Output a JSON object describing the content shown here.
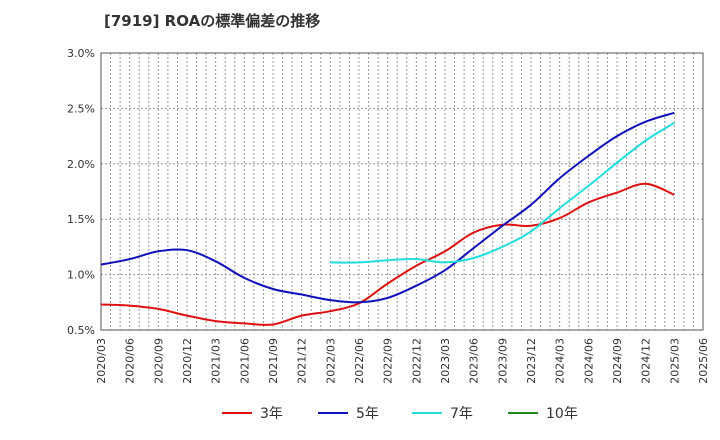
{
  "chart_data": {
    "type": "line",
    "title": "[7919]  ROAの標準偏差の推移",
    "xlabel": "",
    "ylabel": "",
    "ylim": [
      0.5,
      3.0
    ],
    "grid": true,
    "legend_placement": "bottom",
    "y_ticks": [
      "0.5%",
      "1.0%",
      "1.5%",
      "2.0%",
      "2.5%",
      "3.0%"
    ],
    "x_ticks": [
      "2020/03",
      "2020/06",
      "2020/09",
      "2020/12",
      "2021/03",
      "2021/06",
      "2021/09",
      "2021/12",
      "2022/03",
      "2022/06",
      "2022/09",
      "2022/12",
      "2023/03",
      "2023/06",
      "2023/09",
      "2023/12",
      "2024/03",
      "2024/06",
      "2024/09",
      "2024/12",
      "2025/03",
      "2025/06"
    ],
    "series": [
      {
        "name": "3年",
        "color": "#dd1111",
        "x": [
          "2020/03",
          "2020/06",
          "2020/09",
          "2020/12",
          "2021/03",
          "2021/06",
          "2021/09",
          "2021/12",
          "2022/03",
          "2022/06",
          "2022/09",
          "2022/12",
          "2023/03",
          "2023/06",
          "2023/09",
          "2023/12",
          "2024/03",
          "2024/06",
          "2024/09",
          "2024/12",
          "2025/03"
        ],
        "values": [
          0.73,
          0.72,
          0.69,
          0.63,
          0.58,
          0.56,
          0.55,
          0.63,
          0.67,
          0.74,
          0.92,
          1.08,
          1.21,
          1.38,
          1.45,
          1.44,
          1.51,
          1.65,
          1.74,
          1.82,
          1.72
        ]
      },
      {
        "name": "5年",
        "color": "#1111bb",
        "x": [
          "2020/03",
          "2020/06",
          "2020/09",
          "2020/12",
          "2021/03",
          "2021/06",
          "2021/09",
          "2021/12",
          "2022/03",
          "2022/06",
          "2022/09",
          "2022/12",
          "2023/03",
          "2023/06",
          "2023/09",
          "2023/12",
          "2024/03",
          "2024/06",
          "2024/09",
          "2024/12",
          "2025/03"
        ],
        "values": [
          1.09,
          1.14,
          1.21,
          1.22,
          1.12,
          0.97,
          0.87,
          0.82,
          0.77,
          0.75,
          0.79,
          0.9,
          1.04,
          1.24,
          1.44,
          1.63,
          1.87,
          2.07,
          2.25,
          2.38,
          2.46
        ]
      },
      {
        "name": "7年",
        "color": "#22dddd",
        "x": [
          "2022/03",
          "2022/06",
          "2022/09",
          "2022/12",
          "2023/03",
          "2023/06",
          "2023/09",
          "2023/12",
          "2024/03",
          "2024/06",
          "2024/09",
          "2024/12",
          "2025/03"
        ],
        "values": [
          1.11,
          1.11,
          1.13,
          1.14,
          1.11,
          1.15,
          1.25,
          1.39,
          1.6,
          1.8,
          2.01,
          2.21,
          2.37
        ]
      },
      {
        "name": "10年",
        "color": "#228822",
        "x": [],
        "values": []
      }
    ]
  }
}
